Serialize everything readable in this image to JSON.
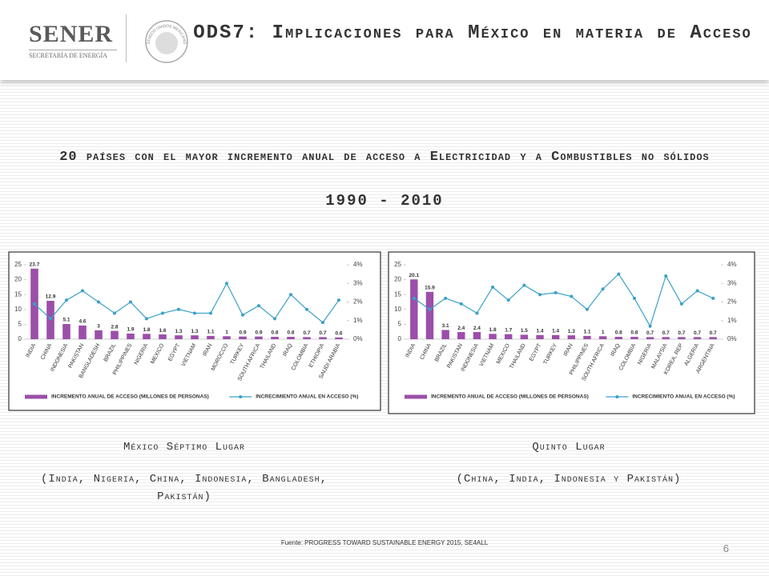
{
  "header": {
    "logo": "SENER",
    "logo_sub": "SECRETARÍA DE ENERGÍA",
    "emblem_text": "ESTADOS UNIDOS MEXICANOS",
    "title": "ODS7: Implicaciones para México en materia de Acceso"
  },
  "subtitle": "20 países con el mayor incremento anual de acceso a Electricidad y a Combustibles no sólidos",
  "period": "1990 - 2010",
  "chart_data": [
    {
      "type": "bar",
      "legend": "bottom",
      "grid": false,
      "categories": [
        "INDIA",
        "CHINA",
        "INDONESIA",
        "PAKISTAN",
        "BANGLADESH",
        "BRAZIL",
        "PHILIPPINES",
        "NIGERIA",
        "MEXICO",
        "EGYPT",
        "VIETNAM",
        "IRAN",
        "MOROCCO",
        "TURKEY",
        "SOUTH AFRICA",
        "THAILAND",
        "IRAQ",
        "COLOMBIA",
        "ETHIOPIA",
        "SAUDI ARABIA"
      ],
      "ylim": [
        0,
        25
      ],
      "yticks": [
        0,
        5,
        10,
        15,
        20,
        25
      ],
      "y2lim": [
        0,
        4
      ],
      "y2ticks": [
        {
          "value": 0,
          "label": "0%"
        },
        {
          "value": 1,
          "label": "1%"
        },
        {
          "value": 2,
          "label": "2%"
        },
        {
          "value": 3,
          "label": "3%"
        },
        {
          "value": 4,
          "label": "4%"
        }
      ],
      "series": [
        {
          "name": "INCREMENTO ANUAL DE ACCESO (MILLONES DE PERSONAS)",
          "color": "#9b4fa8",
          "type": "bar",
          "values": [
            23.7,
            12.9,
            5.1,
            4.6,
            3,
            2.8,
            1.9,
            1.8,
            1.6,
            1.3,
            1.3,
            1.1,
            1,
            0.9,
            0.9,
            0.8,
            0.8,
            0.7,
            0.7,
            0.6
          ]
        },
        {
          "name": "INCRECIMIENTO ANUAL EN ACCESO (%)",
          "color": "#3aa0c8",
          "type": "line",
          "axis": "y2",
          "values": [
            1.9,
            1.1,
            2.1,
            2.6,
            2.0,
            1.4,
            2.0,
            1.1,
            1.4,
            1.6,
            1.4,
            1.4,
            3.0,
            1.3,
            1.8,
            1.1,
            2.4,
            1.6,
            0.9,
            2.1
          ]
        }
      ]
    },
    {
      "type": "bar",
      "legend": "bottom",
      "grid": false,
      "categories": [
        "INDIA",
        "CHINA",
        "BRAZIL",
        "PAKISTAN",
        "INDONESIA",
        "VIETNAM",
        "MEXICO",
        "THAILAND",
        "EGYPT",
        "TURKEY",
        "IRAN",
        "PHILIPPINES",
        "SOUTH AFRICA",
        "IRAQ",
        "COLOMBIA",
        "NIGERIA",
        "MALAYSIA",
        "KOREA, REP",
        "ALGERIA",
        "ARGENTINA"
      ],
      "ylim": [
        0,
        25
      ],
      "yticks": [
        0,
        5,
        10,
        15,
        20,
        25
      ],
      "y2lim": [
        0,
        4
      ],
      "y2ticks": [
        {
          "value": 0,
          "label": "0%"
        },
        {
          "value": 1,
          "label": "1%"
        },
        {
          "value": 2,
          "label": "2%"
        },
        {
          "value": 3,
          "label": "3%"
        },
        {
          "value": 4,
          "label": "4%"
        }
      ],
      "series": [
        {
          "name": "INCREMENTO ANUAL DE ACCESO (MILLONES DE PERSONAS)",
          "color": "#9b4fa8",
          "type": "bar",
          "values": [
            20.1,
            15.9,
            3.1,
            2.4,
            2.4,
            1.8,
            1.7,
            1.5,
            1.4,
            1.4,
            1.3,
            1.1,
            1,
            0.8,
            0.8,
            0.7,
            0.7,
            0.7,
            0.7,
            0.7
          ]
        },
        {
          "name": "INCRECIMIENTO ANUAL EN ACCESO (%)",
          "color": "#3aa0c8",
          "type": "line",
          "axis": "y2",
          "values": [
            2.2,
            1.6,
            2.2,
            1.9,
            1.4,
            2.8,
            2.1,
            2.9,
            2.4,
            2.5,
            2.3,
            1.6,
            2.7,
            3.5,
            2.2,
            0.7,
            3.4,
            1.9,
            2.6,
            2.2
          ]
        }
      ]
    }
  ],
  "captions": [
    {
      "title": "México Séptimo Lugar",
      "detail": "(India, Nigeria, China, Indonesia, Bangladesh, Pakistán)"
    },
    {
      "title": "Quinto Lugar",
      "detail": "(China, India, Indonesia y Pakistán)"
    }
  ],
  "source": "Fuente: PROGRESS TOWARD SUSTAINABLE ENERGY 2015, SE4ALL",
  "page_number": "6"
}
